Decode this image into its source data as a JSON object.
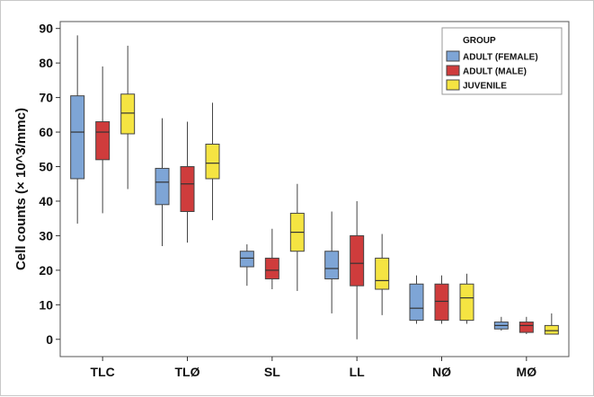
{
  "chart_data": {
    "type": "boxplot",
    "title": "",
    "xlabel": "",
    "ylabel": "Cell counts (× 10^3/mmc)",
    "ylim": [
      -5,
      92
    ],
    "yticks": [
      0,
      10,
      20,
      30,
      40,
      50,
      60,
      70,
      80,
      90
    ],
    "grid": false,
    "legend": {
      "title": "GROUP",
      "placement": "top-right",
      "entries": [
        "ADULT (FEMALE)",
        "ADULT (MALE)",
        "JUVENILE"
      ]
    },
    "categories": [
      "TLC",
      "TLØ",
      "SL",
      "LL",
      "NØ",
      "MØ"
    ],
    "series": [
      {
        "name": "ADULT (FEMALE)",
        "color": "#7ea5d6",
        "boxes": [
          {
            "min": 33.5,
            "q1": 46.5,
            "median": 60,
            "q3": 70.5,
            "max": 88
          },
          {
            "min": 27,
            "q1": 39,
            "median": 45.5,
            "q3": 49.5,
            "max": 64
          },
          {
            "min": 15.5,
            "q1": 21,
            "median": 23.5,
            "q3": 25.5,
            "max": 27.5
          },
          {
            "min": 7.5,
            "q1": 17.5,
            "median": 20.5,
            "q3": 25.5,
            "max": 37
          },
          {
            "min": 4.5,
            "q1": 5.5,
            "median": 9,
            "q3": 16,
            "max": 18.5
          },
          {
            "min": 2.5,
            "q1": 3,
            "median": 4,
            "q3": 5,
            "max": 6.5
          }
        ]
      },
      {
        "name": "ADULT (MALE)",
        "color": "#cf3c3c",
        "boxes": [
          {
            "min": 36.5,
            "q1": 52,
            "median": 60,
            "q3": 63,
            "max": 79
          },
          {
            "min": 28,
            "q1": 37,
            "median": 45,
            "q3": 50,
            "max": 63
          },
          {
            "min": 14.5,
            "q1": 17.5,
            "median": 20,
            "q3": 23.5,
            "max": 32
          },
          {
            "min": 0,
            "q1": 15.5,
            "median": 22,
            "q3": 30,
            "max": 40
          },
          {
            "min": 4.5,
            "q1": 5.5,
            "median": 11,
            "q3": 16,
            "max": 18.5
          },
          {
            "min": 1.5,
            "q1": 2,
            "median": 4,
            "q3": 5,
            "max": 6.5
          }
        ]
      },
      {
        "name": "JUVENILE",
        "color": "#f5e442",
        "boxes": [
          {
            "min": 43.5,
            "q1": 59.5,
            "median": 65.5,
            "q3": 71,
            "max": 85
          },
          {
            "min": 34.5,
            "q1": 46.5,
            "median": 51,
            "q3": 56.5,
            "max": 68.5
          },
          {
            "min": 14,
            "q1": 25.5,
            "median": 31,
            "q3": 36.5,
            "max": 45
          },
          {
            "min": 7,
            "q1": 14.5,
            "median": 17,
            "q3": 23.5,
            "max": 30.5
          },
          {
            "min": 4.5,
            "q1": 5.5,
            "median": 12,
            "q3": 16,
            "max": 19
          },
          {
            "min": 1.5,
            "q1": 1.5,
            "median": 2.5,
            "q3": 4,
            "max": 7.5
          }
        ]
      }
    ]
  }
}
